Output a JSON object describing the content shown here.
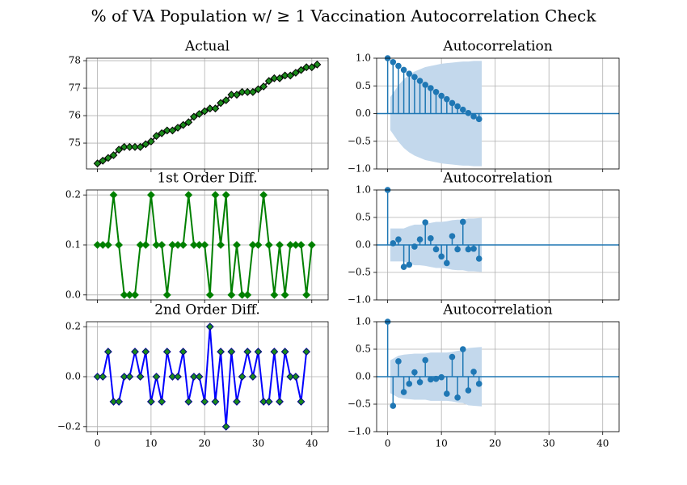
{
  "title": "% of VA Population w/ ≥ 1 Vaccination Autocorrelation Check",
  "chart_data": [
    {
      "type": "line",
      "title": "Actual",
      "color": "#2c2c2c",
      "marker_color": "#1a8a1a",
      "marker_edge": "#000000",
      "values": [
        74.26,
        74.36,
        74.46,
        74.56,
        74.76,
        74.86,
        74.86,
        74.86,
        74.86,
        74.96,
        75.06,
        75.26,
        75.36,
        75.46,
        75.46,
        75.56,
        75.66,
        75.76,
        75.96,
        76.06,
        76.16,
        76.26,
        76.26,
        76.46,
        76.56,
        76.76,
        76.76,
        76.86,
        76.86,
        76.86,
        76.96,
        77.06,
        77.26,
        77.36,
        77.36,
        77.46,
        77.46,
        77.56,
        77.66,
        77.76,
        77.76,
        77.86
      ],
      "xlim": [
        -2.05,
        43.05
      ],
      "xticks": [
        0,
        10,
        20,
        30,
        40
      ],
      "show_xticklabels": false,
      "ylim": [
        74.06,
        78.09
      ],
      "yticks": [
        75,
        76,
        77,
        78
      ],
      "grid": true
    },
    {
      "type": "acf",
      "title": "Autocorrelation",
      "color": "#1f77b4",
      "band_color": "#c3d8ec",
      "values": [
        1,
        0.93,
        0.86,
        0.79,
        0.72,
        0.66,
        0.59,
        0.52,
        0.46,
        0.39,
        0.32,
        0.26,
        0.19,
        0.13,
        0.07,
        0.01,
        -0.05,
        -0.1
      ],
      "confidence": [
        0.3,
        0.51,
        0.62,
        0.7,
        0.76,
        0.8,
        0.84,
        0.86,
        0.88,
        0.9,
        0.91,
        0.92,
        0.93,
        0.94,
        0.94,
        0.95,
        0.95
      ],
      "xlim": [
        -2.05,
        43.05
      ],
      "xticks": [
        0,
        10,
        20,
        30,
        40
      ],
      "show_xticklabels": false,
      "ylim": [
        -1,
        1
      ],
      "yticks": [
        {
          "value": -1,
          "label": "−1.0"
        },
        {
          "value": -0.5,
          "label": "−0.5"
        },
        {
          "value": 0,
          "label": "0.0"
        },
        0.5,
        {
          "value": 1,
          "label": "1.0"
        }
      ],
      "grid": true
    },
    {
      "type": "line",
      "title": "1st Order Diff.",
      "color": "#008000",
      "marker_color": "#008000",
      "marker_edge": "#008000",
      "values": [
        0.1,
        0.1,
        0.1,
        0.2,
        0.1,
        0,
        0,
        0,
        0.1,
        0.1,
        0.2,
        0.1,
        0.1,
        0,
        0.1,
        0.1,
        0.1,
        0.2,
        0.1,
        0.1,
        0.1,
        0,
        0.2,
        0.1,
        0.2,
        0,
        0.1,
        0,
        0,
        0.1,
        0.1,
        0.2,
        0.1,
        0,
        0.1,
        0,
        0.1,
        0.1,
        0.1,
        0,
        0.1
      ],
      "xlim": [
        -2.05,
        43.05
      ],
      "xticks": [
        0,
        10,
        20,
        30,
        40
      ],
      "show_xticklabels": false,
      "ylim": [
        -0.01,
        0.21
      ],
      "yticks": [
        {
          "value": 0,
          "label": "0.0"
        },
        0.1,
        0.2
      ],
      "grid": true
    },
    {
      "type": "acf",
      "title": "Autocorrelation",
      "color": "#1f77b4",
      "band_color": "#c3d8ec",
      "values": [
        1,
        0.03,
        0.1,
        -0.4,
        -0.36,
        -0.03,
        0.1,
        0.41,
        0.12,
        -0.08,
        -0.21,
        -0.33,
        0.16,
        -0.08,
        0.42,
        -0.08,
        -0.07,
        -0.25
      ],
      "confidence": [
        0.3,
        0.3,
        0.3,
        0.34,
        0.37,
        0.37,
        0.38,
        0.4,
        0.42,
        0.42,
        0.43,
        0.45,
        0.46,
        0.46,
        0.48,
        0.48,
        0.49
      ],
      "xlim": [
        -2.05,
        43.05
      ],
      "xticks": [
        0,
        10,
        20,
        30,
        40
      ],
      "show_xticklabels": false,
      "ylim": [
        -1,
        1
      ],
      "yticks": [
        {
          "value": -1,
          "label": "−1.0"
        },
        {
          "value": -0.5,
          "label": "−0.5"
        },
        {
          "value": 0,
          "label": "0.0"
        },
        0.5,
        {
          "value": 1,
          "label": "1.0"
        }
      ],
      "grid": true
    },
    {
      "type": "line",
      "title": "2nd Order Diff.",
      "color": "#0000ff",
      "marker_color": "#1a8a1a",
      "marker_edge": "#00008b",
      "values": [
        0,
        0,
        0.1,
        -0.1,
        -0.1,
        0,
        0,
        0.1,
        0,
        0.1,
        -0.1,
        0,
        -0.1,
        0.1,
        0,
        0,
        0.1,
        -0.1,
        0,
        0,
        -0.1,
        0.2,
        -0.1,
        0.1,
        -0.2,
        0.1,
        -0.1,
        0,
        0.1,
        0,
        0.1,
        -0.1,
        -0.1,
        0.1,
        -0.1,
        0.1,
        0,
        0,
        -0.1,
        0.1
      ],
      "xlim": [
        -2.05,
        43.05
      ],
      "xticks": [
        0,
        10,
        20,
        30,
        40
      ],
      "show_xticklabels": true,
      "ylim": [
        -0.22,
        0.22
      ],
      "yticks": [
        {
          "value": -0.2,
          "label": "−0.2"
        },
        {
          "value": 0,
          "label": "0.0"
        },
        0.2
      ],
      "grid": true
    },
    {
      "type": "acf",
      "title": "Autocorrelation",
      "color": "#1f77b4",
      "band_color": "#c3d8ec",
      "values": [
        1,
        -0.53,
        0.28,
        -0.28,
        -0.13,
        0.08,
        -0.1,
        0.3,
        -0.05,
        -0.04,
        -0.01,
        -0.31,
        0.36,
        -0.38,
        0.5,
        -0.25,
        0.09,
        -0.13
      ],
      "confidence": [
        0.3,
        0.38,
        0.4,
        0.41,
        0.42,
        0.42,
        0.42,
        0.44,
        0.44,
        0.44,
        0.44,
        0.45,
        0.47,
        0.48,
        0.52,
        0.53,
        0.54
      ],
      "xlim": [
        -2.05,
        43.05
      ],
      "xticks": [
        0,
        10,
        20,
        30,
        40
      ],
      "show_xticklabels": true,
      "ylim": [
        -1,
        1
      ],
      "yticks": [
        {
          "value": -1,
          "label": "−1.0"
        },
        {
          "value": -0.5,
          "label": "−0.5"
        },
        {
          "value": 0,
          "label": "0.0"
        },
        0.5,
        {
          "value": 1,
          "label": "1.0"
        }
      ],
      "grid": true
    }
  ]
}
